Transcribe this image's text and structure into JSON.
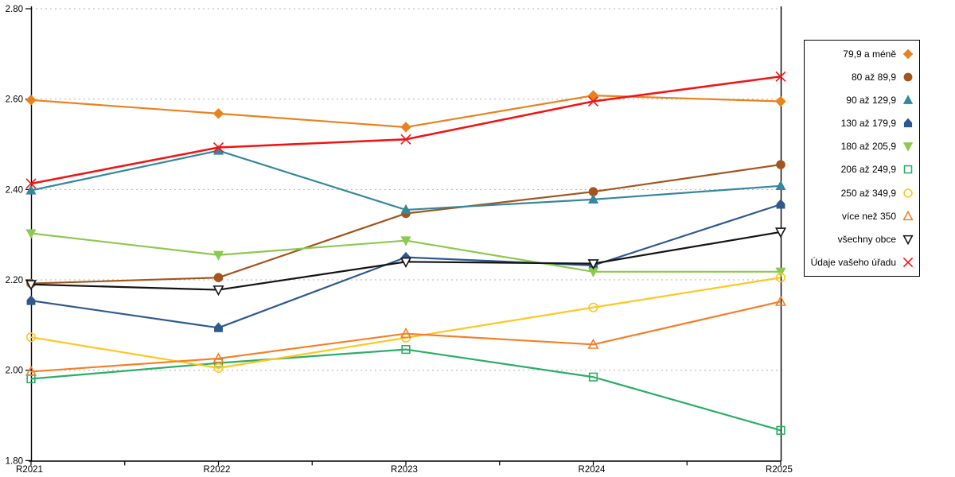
{
  "chart_data": {
    "type": "line",
    "title": "",
    "xlabel": "",
    "ylabel": "",
    "categories": [
      "R2021",
      "R2022",
      "R2023",
      "R2024",
      "R2025"
    ],
    "ylim": [
      1.8,
      2.8
    ],
    "ytick_labels": [
      "1.80",
      "2.00",
      "2.20",
      "2.40",
      "2.60",
      "2.80"
    ],
    "grid": "horizontal dashed gridlines at each y tick",
    "legend_position": "right, boxed",
    "series": [
      {
        "name": "79,9 a méně",
        "color": "#E8821E",
        "marker": "diamond",
        "marker_fill": "filled",
        "values": [
          2.598,
          2.568,
          2.538,
          2.608,
          2.595
        ]
      },
      {
        "name": "80 až 89,9",
        "color": "#A4541C",
        "marker": "circle",
        "marker_fill": "filled",
        "values": [
          2.192,
          2.205,
          2.347,
          2.395,
          2.455
        ]
      },
      {
        "name": "90 až 129,9",
        "color": "#35879C",
        "marker": "triangle-up",
        "marker_fill": "filled",
        "values": [
          2.398,
          2.486,
          2.355,
          2.378,
          2.408
        ]
      },
      {
        "name": "130 až 179,9",
        "color": "#2E598C",
        "marker": "pentagon",
        "marker_fill": "filled",
        "values": [
          2.154,
          2.094,
          2.25,
          2.232,
          2.367
        ]
      },
      {
        "name": "180 až 205,9",
        "color": "#8CC94F",
        "marker": "triangle-down",
        "marker_fill": "filled",
        "values": [
          2.303,
          2.255,
          2.287,
          2.218,
          2.218
        ]
      },
      {
        "name": "206 až 249,9",
        "color": "#2BAE66",
        "marker": "square",
        "marker_fill": "open",
        "values": [
          1.981,
          2.016,
          2.046,
          1.985,
          1.867
        ]
      },
      {
        "name": "250 až 349,9",
        "color": "#FFC61E",
        "marker": "circle",
        "marker_fill": "open",
        "values": [
          2.073,
          2.005,
          2.072,
          2.139,
          2.205
        ]
      },
      {
        "name": "více než 350",
        "color": "#F57E27",
        "marker": "triangle-up",
        "marker_fill": "open",
        "values": [
          1.997,
          2.026,
          2.081,
          2.057,
          2.152
        ]
      },
      {
        "name": "všechny obce",
        "color": "#141414",
        "marker": "triangle-down",
        "marker_fill": "open",
        "values": [
          2.19,
          2.178,
          2.24,
          2.236,
          2.306
        ]
      },
      {
        "name": "Údaje vašeho úřadu",
        "color": "#F21414",
        "marker": "x",
        "marker_fill": "line",
        "values": [
          2.413,
          2.493,
          2.511,
          2.595,
          2.65
        ]
      }
    ],
    "colors": {
      "axis": "#000000",
      "gridline": "#B3B3B3",
      "background": "#FFFFFF",
      "tick_text": "#000000"
    }
  }
}
